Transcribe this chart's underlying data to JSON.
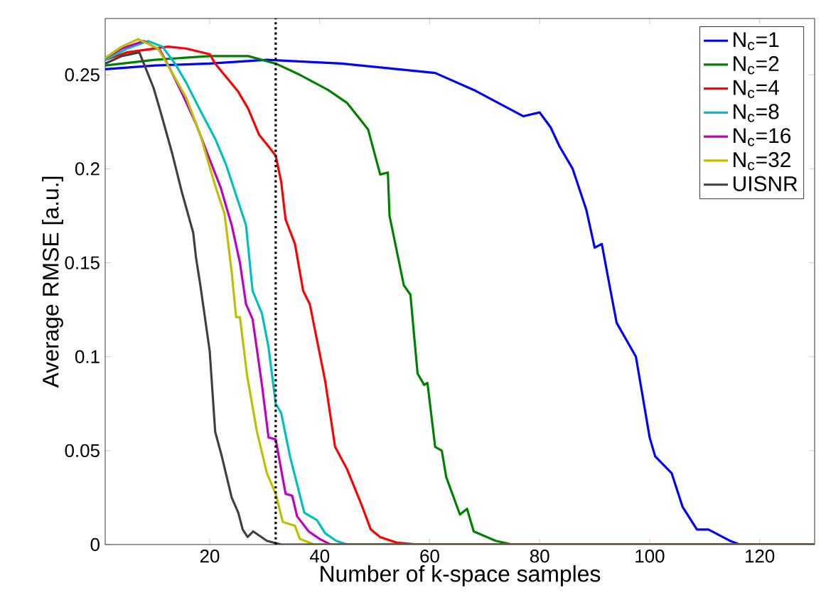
{
  "chart_data": {
    "type": "line",
    "xlabel": "Number of k-space samples",
    "ylabel": "Average RMSE [a.u.]",
    "xlim": [
      1,
      130
    ],
    "ylim": [
      0,
      0.28
    ],
    "xticks": [
      20,
      40,
      60,
      80,
      100,
      120
    ],
    "yticks": [
      0,
      0.05,
      0.1,
      0.15,
      0.2,
      0.25
    ],
    "legend": "top right",
    "grid": false,
    "ref_lines": [
      {
        "axis": "x",
        "value": 32,
        "color": "#000000",
        "line_style": "dotted"
      }
    ],
    "series": [
      {
        "name": "N$_{c}$=1",
        "color": "#0000ff",
        "x": [
          1,
          10,
          20,
          30.4,
          44,
          61,
          68,
          77,
          80,
          82,
          83.6,
          86,
          88.5,
          90,
          91.3,
          92.7,
          94,
          97.5,
          100,
          101,
          104,
          106,
          108.6,
          110.7,
          114.6,
          116.4,
          130
        ],
        "values": [
          0.253,
          0.255,
          0.256,
          0.258,
          0.256,
          0.251,
          0.242,
          0.228,
          0.23,
          0.222,
          0.212,
          0.2,
          0.178,
          0.158,
          0.16,
          0.138,
          0.118,
          0.1,
          0.057,
          0.047,
          0.038,
          0.02,
          0.008,
          0.008,
          0.002,
          0,
          0
        ]
      },
      {
        "name": "N$_{c}$=2",
        "color": "#008000",
        "x": [
          1,
          10,
          20,
          27,
          32,
          36.4,
          41.5,
          45,
          48.8,
          51,
          52.4,
          52.7,
          55.3,
          56.5,
          57.8,
          59,
          59.6,
          61,
          62.2,
          63,
          65.5,
          66.8,
          68,
          72,
          75,
          130
        ],
        "values": [
          0.255,
          0.258,
          0.26,
          0.26,
          0.256,
          0.25,
          0.242,
          0.235,
          0.221,
          0.197,
          0.198,
          0.175,
          0.138,
          0.133,
          0.091,
          0.085,
          0.086,
          0.052,
          0.05,
          0.036,
          0.016,
          0.019,
          0.007,
          0.002,
          0,
          0
        ]
      },
      {
        "name": "N$_{c}$=4",
        "color": "#ff0000",
        "x": [
          1,
          5,
          12.4,
          15.7,
          20,
          21,
          25.2,
          27,
          29,
          30.4,
          32,
          33,
          33.8,
          35.5,
          37,
          38.2,
          41,
          42.8,
          45,
          47.5,
          49.3,
          51,
          54,
          58,
          130
        ],
        "values": [
          0.258,
          0.262,
          0.265,
          0.264,
          0.261,
          0.256,
          0.241,
          0.232,
          0.218,
          0.213,
          0.207,
          0.193,
          0.173,
          0.16,
          0.135,
          0.128,
          0.087,
          0.052,
          0.04,
          0.022,
          0.008,
          0.004,
          0.001,
          0,
          0
        ]
      },
      {
        "name": "N$_{c}$=8",
        "color": "#00bfbf",
        "x": [
          1,
          5,
          8.8,
          11.4,
          13.7,
          15.7,
          18.3,
          21,
          23,
          24.8,
          26.6,
          27.8,
          29.5,
          30.7,
          32,
          33,
          34.6,
          35.9,
          37.2,
          39.5,
          41,
          43,
          45,
          130
        ],
        "values": [
          0.258,
          0.264,
          0.268,
          0.265,
          0.256,
          0.246,
          0.231,
          0.216,
          0.202,
          0.186,
          0.17,
          0.135,
          0.123,
          0.105,
          0.075,
          0.07,
          0.047,
          0.032,
          0.017,
          0.013,
          0.006,
          0.002,
          0,
          0
        ]
      },
      {
        "name": "N$_{c}$=16",
        "color": "#bf00bf",
        "x": [
          1,
          4,
          8,
          11,
          13,
          15,
          17.5,
          20,
          22,
          24,
          25.5,
          26.6,
          27.8,
          29.5,
          30.7,
          32,
          33.8,
          35,
          35.9,
          38,
          40,
          42,
          130
        ],
        "values": [
          0.259,
          0.264,
          0.268,
          0.263,
          0.252,
          0.24,
          0.224,
          0.205,
          0.19,
          0.17,
          0.15,
          0.128,
          0.12,
          0.085,
          0.057,
          0.056,
          0.027,
          0.026,
          0.015,
          0.007,
          0.003,
          0,
          0
        ]
      },
      {
        "name": "N$_{c}$=32",
        "color": "#bfbf00",
        "x": [
          1,
          4,
          7,
          10.6,
          13,
          15.7,
          18.3,
          21,
          22.7,
          24,
          24.8,
          25.5,
          26.8,
          28.6,
          30.4,
          32,
          33.3,
          35.5,
          36.4,
          39,
          130
        ],
        "values": [
          0.259,
          0.265,
          0.269,
          0.264,
          0.252,
          0.238,
          0.218,
          0.191,
          0.176,
          0.145,
          0.121,
          0.121,
          0.09,
          0.06,
          0.038,
          0.027,
          0.012,
          0.01,
          0.003,
          0,
          0
        ]
      },
      {
        "name": "UISNR",
        "color": "#404040",
        "x": [
          1,
          4,
          7.2,
          9.8,
          11,
          13.2,
          14.9,
          17,
          17.5,
          18.3,
          20,
          21,
          22.2,
          24,
          25.2,
          26,
          26.9,
          27.9,
          30.4,
          33,
          130
        ],
        "values": [
          0.256,
          0.26,
          0.262,
          0.243,
          0.231,
          0.208,
          0.188,
          0.166,
          0.153,
          0.138,
          0.103,
          0.06,
          0.047,
          0.025,
          0.017,
          0.008,
          0.004,
          0.007,
          0.002,
          0,
          0
        ]
      }
    ]
  }
}
